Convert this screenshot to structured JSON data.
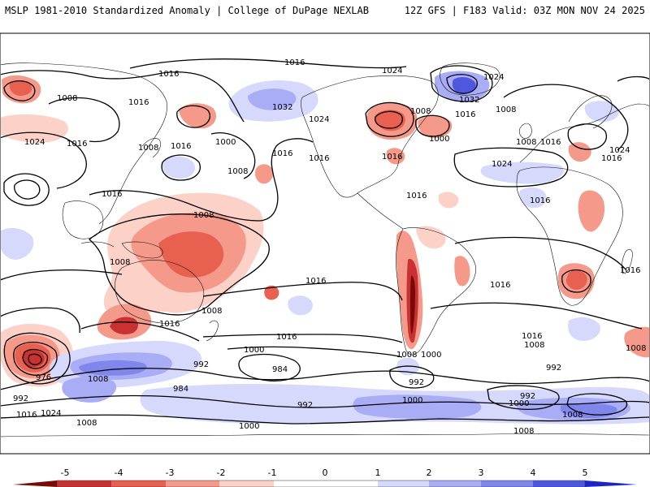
{
  "header": {
    "left_title": "MSLP 1981-2010 Standardized Anomaly | College of DuPage NEXLAB",
    "right_title": "12Z GFS | F183 Valid: 03Z MON NOV 24 2025"
  },
  "colors": {
    "neg5": "#7a0a0a",
    "neg4": "#c83232",
    "neg3": "#e8604f",
    "neg2": "#f59a8a",
    "neg1": "#fcd2c8",
    "zero": "#ffffff",
    "pos1": "#d6d8fc",
    "pos2": "#a9adf5",
    "pos3": "#7f86ec",
    "pos4": "#4e57e0",
    "pos5": "#1f24c8"
  },
  "isobar_labels": [
    "1016",
    "1024",
    "1024",
    "1008",
    "1016",
    "1008",
    "1032",
    "1024",
    "1008",
    "1016",
    "1024",
    "1016",
    "1032",
    "1024",
    "1016",
    "1008",
    "1000",
    "1016",
    "1008",
    "1016",
    "1000",
    "1016",
    "1024",
    "1016",
    "1016",
    "1008",
    "1016",
    "1008",
    "1016",
    "1016",
    "1008",
    "1016",
    "1016",
    "1016",
    "1016",
    "1016",
    "1008",
    "1000",
    "1016",
    "1008",
    "976",
    "1000",
    "1008",
    "992",
    "984",
    "992",
    "984",
    "992",
    "1000",
    "992",
    "1008",
    "1024",
    "1016",
    "1008",
    "992",
    "1000",
    "1016",
    "1008",
    "992",
    "1008",
    "1000",
    "1008"
  ],
  "colorbar": {
    "tick_labels": [
      "-5",
      "-4",
      "-3",
      "-2",
      "-1",
      "0",
      "1",
      "2",
      "3",
      "4",
      "5"
    ]
  }
}
